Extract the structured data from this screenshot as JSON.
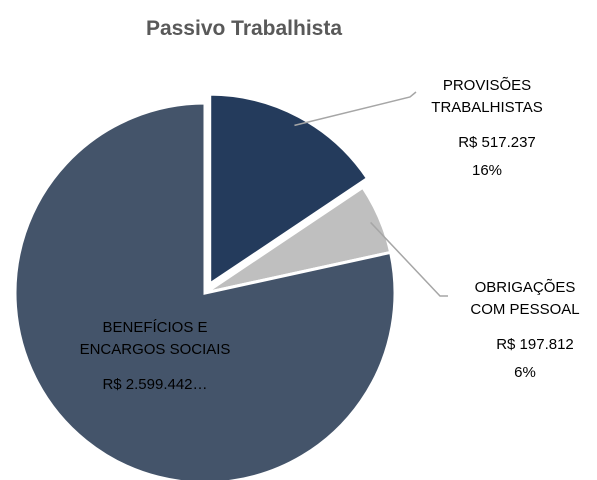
{
  "chart_data": {
    "type": "pie",
    "title": "Passivo Trabalhista",
    "categories": [
      "PROVISÕES\nTRABALHISTAS",
      "OBRIGAÇÕES\nCOM PESSOAL",
      "BENEFÍCIOS E\nENCARGOS SOCIAIS"
    ],
    "values": [
      517237,
      197812,
      2599442
    ],
    "value_labels": [
      "R$ 517.237",
      "R$ 197.812",
      "R$ 2.599.442…"
    ],
    "percent_labels": [
      "16%",
      "6%",
      null
    ],
    "colors": [
      "#243b5c",
      "#bfbfbf",
      "#44546a"
    ]
  }
}
